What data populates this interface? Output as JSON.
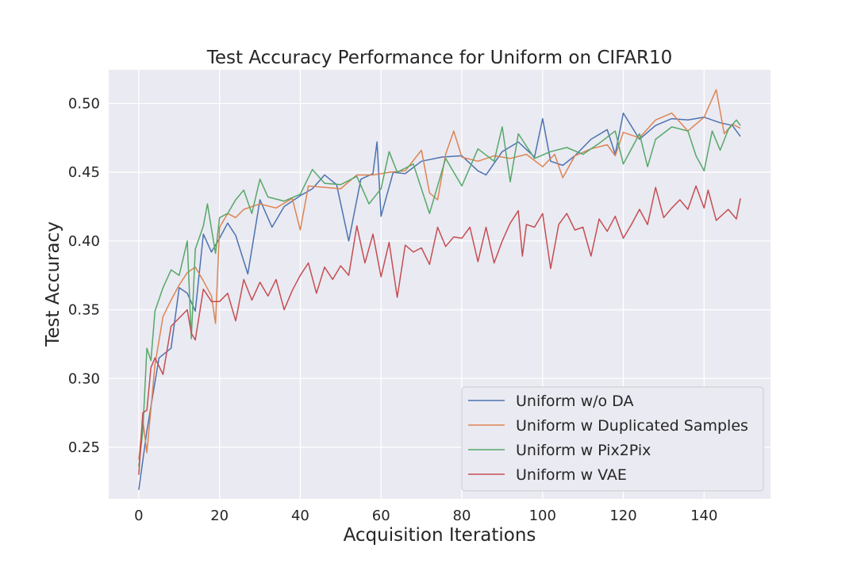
{
  "chart_data": {
    "type": "line",
    "title": "Test Accuracy Performance for Uniform on CIFAR10",
    "xlabel": "Acquisition Iterations",
    "ylabel": "Test Accuracy",
    "xlim": [
      -7.45,
      156.45
    ],
    "ylim": [
      0.2125,
      0.5245
    ],
    "xticks": [
      0,
      20,
      40,
      60,
      80,
      100,
      120,
      140
    ],
    "yticks": [
      0.25,
      0.3,
      0.35,
      0.4,
      0.45,
      0.5
    ],
    "xtick_labels": [
      "0",
      "20",
      "40",
      "60",
      "80",
      "100",
      "120",
      "140"
    ],
    "ytick_labels": [
      "0.25",
      "0.30",
      "0.35",
      "0.40",
      "0.45",
      "0.50"
    ],
    "grid": true,
    "legend_position": "bottom-right",
    "series": [
      {
        "name": "Uniform w/o DA",
        "color": "#4c72b0",
        "points": [
          [
            0,
            0.219
          ],
          [
            2,
            0.262
          ],
          [
            5,
            0.315
          ],
          [
            8,
            0.322
          ],
          [
            10,
            0.366
          ],
          [
            12,
            0.362
          ],
          [
            14,
            0.349
          ],
          [
            16,
            0.405
          ],
          [
            18,
            0.392
          ],
          [
            20,
            0.402
          ],
          [
            22,
            0.413
          ],
          [
            24,
            0.404
          ],
          [
            27,
            0.376
          ],
          [
            30,
            0.43
          ],
          [
            33,
            0.41
          ],
          [
            36,
            0.425
          ],
          [
            40,
            0.433
          ],
          [
            43,
            0.438
          ],
          [
            46,
            0.448
          ],
          [
            49,
            0.441
          ],
          [
            52,
            0.4
          ],
          [
            55,
            0.445
          ],
          [
            58,
            0.449
          ],
          [
            59,
            0.472
          ],
          [
            60,
            0.418
          ],
          [
            63,
            0.45
          ],
          [
            66,
            0.449
          ],
          [
            70,
            0.458
          ],
          [
            75,
            0.461
          ],
          [
            80,
            0.462
          ],
          [
            84,
            0.451
          ],
          [
            86,
            0.448
          ],
          [
            90,
            0.465
          ],
          [
            94,
            0.472
          ],
          [
            98,
            0.461
          ],
          [
            100,
            0.489
          ],
          [
            102,
            0.458
          ],
          [
            105,
            0.455
          ],
          [
            108,
            0.462
          ],
          [
            112,
            0.474
          ],
          [
            116,
            0.481
          ],
          [
            118,
            0.463
          ],
          [
            120,
            0.493
          ],
          [
            124,
            0.474
          ],
          [
            128,
            0.484
          ],
          [
            132,
            0.489
          ],
          [
            136,
            0.488
          ],
          [
            140,
            0.49
          ],
          [
            144,
            0.486
          ],
          [
            147,
            0.484
          ],
          [
            149,
            0.476
          ]
        ]
      },
      {
        "name": "Uniform w Duplicated Samples",
        "color": "#dd8452",
        "points": [
          [
            0,
            0.241
          ],
          [
            1,
            0.27
          ],
          [
            2,
            0.246
          ],
          [
            4,
            0.31
          ],
          [
            6,
            0.345
          ],
          [
            8,
            0.357
          ],
          [
            10,
            0.368
          ],
          [
            12,
            0.377
          ],
          [
            14,
            0.381
          ],
          [
            16,
            0.371
          ],
          [
            18,
            0.36
          ],
          [
            19,
            0.34
          ],
          [
            20,
            0.41
          ],
          [
            22,
            0.42
          ],
          [
            24,
            0.417
          ],
          [
            26,
            0.423
          ],
          [
            30,
            0.427
          ],
          [
            34,
            0.424
          ],
          [
            38,
            0.431
          ],
          [
            40,
            0.408
          ],
          [
            42,
            0.44
          ],
          [
            46,
            0.439
          ],
          [
            50,
            0.438
          ],
          [
            54,
            0.448
          ],
          [
            58,
            0.448
          ],
          [
            62,
            0.45
          ],
          [
            66,
            0.451
          ],
          [
            70,
            0.466
          ],
          [
            72,
            0.435
          ],
          [
            74,
            0.43
          ],
          [
            76,
            0.463
          ],
          [
            78,
            0.48
          ],
          [
            80,
            0.461
          ],
          [
            84,
            0.458
          ],
          [
            88,
            0.462
          ],
          [
            92,
            0.46
          ],
          [
            96,
            0.463
          ],
          [
            100,
            0.454
          ],
          [
            103,
            0.463
          ],
          [
            105,
            0.446
          ],
          [
            108,
            0.462
          ],
          [
            112,
            0.467
          ],
          [
            116,
            0.47
          ],
          [
            118,
            0.462
          ],
          [
            120,
            0.479
          ],
          [
            124,
            0.475
          ],
          [
            128,
            0.488
          ],
          [
            132,
            0.493
          ],
          [
            136,
            0.48
          ],
          [
            140,
            0.49
          ],
          [
            143,
            0.51
          ],
          [
            145,
            0.478
          ],
          [
            147,
            0.485
          ],
          [
            149,
            0.482
          ]
        ]
      },
      {
        "name": "Uniform w Pix2Pix",
        "color": "#55a868",
        "points": [
          [
            0,
            0.236
          ],
          [
            1,
            0.262
          ],
          [
            2,
            0.322
          ],
          [
            3,
            0.313
          ],
          [
            4,
            0.349
          ],
          [
            6,
            0.366
          ],
          [
            8,
            0.379
          ],
          [
            10,
            0.375
          ],
          [
            12,
            0.4
          ],
          [
            13,
            0.329
          ],
          [
            14,
            0.394
          ],
          [
            16,
            0.411
          ],
          [
            17,
            0.427
          ],
          [
            19,
            0.391
          ],
          [
            20,
            0.417
          ],
          [
            22,
            0.42
          ],
          [
            24,
            0.43
          ],
          [
            26,
            0.437
          ],
          [
            28,
            0.42
          ],
          [
            30,
            0.445
          ],
          [
            32,
            0.432
          ],
          [
            36,
            0.429
          ],
          [
            40,
            0.434
          ],
          [
            43,
            0.452
          ],
          [
            46,
            0.442
          ],
          [
            50,
            0.441
          ],
          [
            54,
            0.447
          ],
          [
            57,
            0.427
          ],
          [
            60,
            0.438
          ],
          [
            62,
            0.465
          ],
          [
            64,
            0.45
          ],
          [
            68,
            0.456
          ],
          [
            72,
            0.42
          ],
          [
            76,
            0.46
          ],
          [
            80,
            0.44
          ],
          [
            84,
            0.467
          ],
          [
            88,
            0.458
          ],
          [
            90,
            0.483
          ],
          [
            92,
            0.443
          ],
          [
            94,
            0.478
          ],
          [
            98,
            0.46
          ],
          [
            102,
            0.465
          ],
          [
            106,
            0.468
          ],
          [
            110,
            0.463
          ],
          [
            114,
            0.471
          ],
          [
            118,
            0.48
          ],
          [
            120,
            0.456
          ],
          [
            124,
            0.478
          ],
          [
            126,
            0.454
          ],
          [
            128,
            0.474
          ],
          [
            132,
            0.483
          ],
          [
            136,
            0.48
          ],
          [
            138,
            0.462
          ],
          [
            140,
            0.451
          ],
          [
            142,
            0.48
          ],
          [
            144,
            0.466
          ],
          [
            146,
            0.481
          ],
          [
            148,
            0.488
          ],
          [
            149,
            0.484
          ]
        ]
      },
      {
        "name": "Uniform w VAE",
        "color": "#c44e52",
        "points": [
          [
            0,
            0.23
          ],
          [
            1,
            0.275
          ],
          [
            2,
            0.277
          ],
          [
            3,
            0.308
          ],
          [
            4,
            0.315
          ],
          [
            6,
            0.303
          ],
          [
            8,
            0.338
          ],
          [
            10,
            0.344
          ],
          [
            12,
            0.35
          ],
          [
            13,
            0.333
          ],
          [
            14,
            0.328
          ],
          [
            16,
            0.365
          ],
          [
            18,
            0.356
          ],
          [
            20,
            0.356
          ],
          [
            22,
            0.362
          ],
          [
            24,
            0.342
          ],
          [
            26,
            0.372
          ],
          [
            28,
            0.357
          ],
          [
            30,
            0.37
          ],
          [
            32,
            0.36
          ],
          [
            34,
            0.372
          ],
          [
            36,
            0.35
          ],
          [
            38,
            0.364
          ],
          [
            40,
            0.375
          ],
          [
            42,
            0.384
          ],
          [
            44,
            0.362
          ],
          [
            46,
            0.381
          ],
          [
            48,
            0.372
          ],
          [
            50,
            0.382
          ],
          [
            52,
            0.375
          ],
          [
            54,
            0.411
          ],
          [
            56,
            0.384
          ],
          [
            58,
            0.405
          ],
          [
            60,
            0.374
          ],
          [
            62,
            0.399
          ],
          [
            64,
            0.359
          ],
          [
            66,
            0.397
          ],
          [
            68,
            0.392
          ],
          [
            70,
            0.395
          ],
          [
            72,
            0.383
          ],
          [
            74,
            0.41
          ],
          [
            76,
            0.396
          ],
          [
            78,
            0.403
          ],
          [
            80,
            0.402
          ],
          [
            82,
            0.41
          ],
          [
            84,
            0.385
          ],
          [
            86,
            0.41
          ],
          [
            88,
            0.384
          ],
          [
            90,
            0.4
          ],
          [
            92,
            0.413
          ],
          [
            94,
            0.422
          ],
          [
            95,
            0.389
          ],
          [
            96,
            0.412
          ],
          [
            98,
            0.41
          ],
          [
            100,
            0.42
          ],
          [
            102,
            0.38
          ],
          [
            104,
            0.412
          ],
          [
            106,
            0.42
          ],
          [
            108,
            0.408
          ],
          [
            110,
            0.41
          ],
          [
            112,
            0.389
          ],
          [
            114,
            0.416
          ],
          [
            116,
            0.407
          ],
          [
            118,
            0.418
          ],
          [
            120,
            0.402
          ],
          [
            122,
            0.412
          ],
          [
            124,
            0.423
          ],
          [
            126,
            0.412
          ],
          [
            128,
            0.439
          ],
          [
            130,
            0.417
          ],
          [
            132,
            0.424
          ],
          [
            134,
            0.43
          ],
          [
            136,
            0.423
          ],
          [
            138,
            0.44
          ],
          [
            140,
            0.424
          ],
          [
            141,
            0.437
          ],
          [
            143,
            0.415
          ],
          [
            146,
            0.423
          ],
          [
            148,
            0.416
          ],
          [
            149,
            0.431
          ]
        ]
      }
    ]
  }
}
